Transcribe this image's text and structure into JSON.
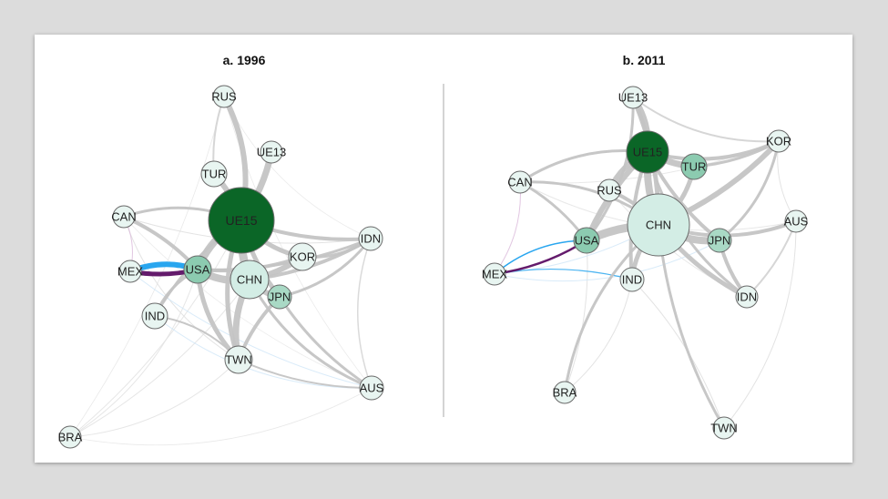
{
  "panels": [
    {
      "title": "a. 1996",
      "nodes": [
        {
          "id": "RUS",
          "label": "RUS",
          "fill": "#e8f5f1"
        },
        {
          "id": "UE13",
          "label": "UE13",
          "fill": "#e8f5f1"
        },
        {
          "id": "TUR",
          "label": "TUR",
          "fill": "#e8f5f1"
        },
        {
          "id": "UE15",
          "label": "UE15",
          "fill": "#0b6627"
        },
        {
          "id": "CAN",
          "label": "CAN",
          "fill": "#e8f5f1"
        },
        {
          "id": "IDN",
          "label": "IDN",
          "fill": "#e8f5f1"
        },
        {
          "id": "KOR",
          "label": "KOR",
          "fill": "#e8f5f1"
        },
        {
          "id": "MEX",
          "label": "MEX",
          "fill": "#e8f5f1"
        },
        {
          "id": "USA",
          "label": "USA",
          "fill": "#8ccbb0"
        },
        {
          "id": "CHN",
          "label": "CHN",
          "fill": "#d3ede5"
        },
        {
          "id": "JPN",
          "label": "JPN",
          "fill": "#a9d9c5"
        },
        {
          "id": "IND",
          "label": "IND",
          "fill": "#e8f5f1"
        },
        {
          "id": "TWN",
          "label": "TWN",
          "fill": "#e8f5f1"
        },
        {
          "id": "AUS",
          "label": "AUS",
          "fill": "#e8f5f1"
        },
        {
          "id": "BRA",
          "label": "BRA",
          "fill": "#e8f5f1"
        }
      ],
      "edges": [
        {
          "from": "UE15",
          "to": "CHN",
          "color": "#c4c4c4",
          "weight": 9
        },
        {
          "from": "UE15",
          "to": "USA",
          "color": "#c4c4c4",
          "weight": 8
        },
        {
          "from": "UE15",
          "to": "TUR",
          "color": "#c4c4c4",
          "weight": 6
        },
        {
          "from": "UE15",
          "to": "RUS",
          "color": "#c4c4c4",
          "weight": 6
        },
        {
          "from": "UE15",
          "to": "UE13",
          "color": "#c4c4c4",
          "weight": 7
        },
        {
          "from": "UE15",
          "to": "KOR",
          "color": "#c4c4c4",
          "weight": 5
        },
        {
          "from": "UE15",
          "to": "IDN",
          "color": "#c4c4c4",
          "weight": 4
        },
        {
          "from": "UE15",
          "to": "TWN",
          "color": "#c4c4c4",
          "weight": 5
        },
        {
          "from": "UE15",
          "to": "JPN",
          "color": "#c4c4c4",
          "weight": 5
        },
        {
          "from": "UE15",
          "to": "CAN",
          "color": "#c4c4c4",
          "weight": 3
        },
        {
          "from": "UE15",
          "to": "IND",
          "color": "#c4c4c4",
          "weight": 3
        },
        {
          "from": "USA",
          "to": "CHN",
          "color": "#c4c4c4",
          "weight": 8
        },
        {
          "from": "USA",
          "to": "CAN",
          "color": "#c4c4c4",
          "weight": 4
        },
        {
          "from": "USA",
          "to": "TWN",
          "color": "#c4c4c4",
          "weight": 5
        },
        {
          "from": "USA",
          "to": "KOR",
          "color": "#c4c4c4",
          "weight": 4
        },
        {
          "from": "USA",
          "to": "IND",
          "color": "#c4c4c4",
          "weight": 3
        },
        {
          "from": "USA",
          "to": "IDN",
          "color": "#c4c4c4",
          "weight": 3
        },
        {
          "from": "CHN",
          "to": "TWN",
          "color": "#c4c4c4",
          "weight": 7
        },
        {
          "from": "CHN",
          "to": "KOR",
          "color": "#c4c4c4",
          "weight": 6
        },
        {
          "from": "CHN",
          "to": "JPN",
          "color": "#c4c4c4",
          "weight": 6
        },
        {
          "from": "CHN",
          "to": "IDN",
          "color": "#c4c4c4",
          "weight": 4
        },
        {
          "from": "CHN",
          "to": "AUS",
          "color": "#c4c4c4",
          "weight": 3
        },
        {
          "from": "JPN",
          "to": "TWN",
          "color": "#c4c4c4",
          "weight": 4
        },
        {
          "from": "JPN",
          "to": "IDN",
          "color": "#c4c4c4",
          "weight": 3
        },
        {
          "from": "JPN",
          "to": "AUS",
          "color": "#c4c4c4",
          "weight": 3
        },
        {
          "from": "KOR",
          "to": "IDN",
          "color": "#c4c4c4",
          "weight": 3
        },
        {
          "from": "TWN",
          "to": "AUS",
          "color": "#c4c4c4",
          "weight": 2
        },
        {
          "from": "TWN",
          "to": "IND",
          "color": "#c4c4c4",
          "weight": 2
        },
        {
          "from": "RUS",
          "to": "TUR",
          "color": "#d4d4d4",
          "weight": 2
        },
        {
          "from": "IDN",
          "to": "AUS",
          "color": "#d8d8d8",
          "weight": 1.5
        },
        {
          "from": "CAN",
          "to": "IDN",
          "color": "#dcdcdc",
          "weight": 1
        },
        {
          "from": "CAN",
          "to": "TWN",
          "color": "#dcdcdc",
          "weight": 1
        },
        {
          "from": "BRA",
          "to": "UE15",
          "color": "#e0e0e0",
          "weight": 1
        },
        {
          "from": "BRA",
          "to": "USA",
          "color": "#e0e0e0",
          "weight": 1
        },
        {
          "from": "BRA",
          "to": "CHN",
          "color": "#e0e0e0",
          "weight": 1
        },
        {
          "from": "BRA",
          "to": "TWN",
          "color": "#e0e0e0",
          "weight": 1
        },
        {
          "from": "BRA",
          "to": "RUS",
          "color": "#e4e4e4",
          "weight": 0.8
        },
        {
          "from": "BRA",
          "to": "AUS",
          "color": "#e4e4e4",
          "weight": 0.8
        },
        {
          "from": "RUS",
          "to": "AUS",
          "color": "#e6e6e6",
          "weight": 0.8
        },
        {
          "from": "RUS",
          "to": "IDN",
          "color": "#e6e6e6",
          "weight": 0.8
        },
        {
          "from": "CAN",
          "to": "AUS",
          "color": "#e6e6e6",
          "weight": 0.8
        },
        {
          "from": "IND",
          "to": "AUS",
          "color": "#cfe6f7",
          "weight": 1
        },
        {
          "from": "MEX",
          "to": "AUS",
          "color": "#cfe6f7",
          "weight": 1
        },
        {
          "from": "MEX",
          "to": "CAN",
          "color": "#d9b8d9",
          "weight": 1
        },
        {
          "from": "MEX",
          "to": "USA",
          "color": "#5c0f64",
          "weight": 5
        },
        {
          "from": "USA",
          "to": "MEX",
          "color": "#1ea1ee",
          "weight": 6
        }
      ]
    },
    {
      "title": "b. 2011",
      "nodes": [
        {
          "id": "UE13",
          "label": "UE13",
          "fill": "#e8f5f1"
        },
        {
          "id": "UE15",
          "label": "UE15",
          "fill": "#0b6627"
        },
        {
          "id": "KOR",
          "label": "KOR",
          "fill": "#e8f5f1"
        },
        {
          "id": "CAN",
          "label": "CAN",
          "fill": "#e8f5f1"
        },
        {
          "id": "TUR",
          "label": "TUR",
          "fill": "#8ccbb0"
        },
        {
          "id": "RUS",
          "label": "RUS",
          "fill": "#e8f5f1"
        },
        {
          "id": "CHN",
          "label": "CHN",
          "fill": "#d3ede5"
        },
        {
          "id": "AUS",
          "label": "AUS",
          "fill": "#e8f5f1"
        },
        {
          "id": "USA",
          "label": "USA",
          "fill": "#8ccbb0"
        },
        {
          "id": "JPN",
          "label": "JPN",
          "fill": "#a9d9c5"
        },
        {
          "id": "MEX",
          "label": "MEX",
          "fill": "#e8f5f1"
        },
        {
          "id": "IND",
          "label": "IND",
          "fill": "#e8f5f1"
        },
        {
          "id": "IDN",
          "label": "IDN",
          "fill": "#e8f5f1"
        },
        {
          "id": "BRA",
          "label": "BRA",
          "fill": "#e8f5f1"
        },
        {
          "id": "TWN",
          "label": "TWN",
          "fill": "#e8f5f1"
        }
      ],
      "edges": [
        {
          "from": "UE15",
          "to": "CHN",
          "color": "#c4c4c4",
          "weight": 8
        },
        {
          "from": "UE15",
          "to": "UE13",
          "color": "#c4c4c4",
          "weight": 7
        },
        {
          "from": "UE15",
          "to": "TUR",
          "color": "#c4c4c4",
          "weight": 7
        },
        {
          "from": "UE15",
          "to": "RUS",
          "color": "#c4c4c4",
          "weight": 6
        },
        {
          "from": "UE15",
          "to": "USA",
          "color": "#c4c4c4",
          "weight": 6
        },
        {
          "from": "UE15",
          "to": "KOR",
          "color": "#c4c4c4",
          "weight": 4
        },
        {
          "from": "UE15",
          "to": "JPN",
          "color": "#c4c4c4",
          "weight": 4
        },
        {
          "from": "UE15",
          "to": "CAN",
          "color": "#c4c4c4",
          "weight": 3
        },
        {
          "from": "UE15",
          "to": "IND",
          "color": "#c4c4c4",
          "weight": 4
        },
        {
          "from": "UE15",
          "to": "IDN",
          "color": "#c4c4c4",
          "weight": 3
        },
        {
          "from": "CHN",
          "to": "USA",
          "color": "#c4c4c4",
          "weight": 9
        },
        {
          "from": "CHN",
          "to": "JPN",
          "color": "#c4c4c4",
          "weight": 8
        },
        {
          "from": "CHN",
          "to": "KOR",
          "color": "#c4c4c4",
          "weight": 6
        },
        {
          "from": "CHN",
          "to": "TUR",
          "color": "#c4c4c4",
          "weight": 5
        },
        {
          "from": "CHN",
          "to": "UE13",
          "color": "#c4c4c4",
          "weight": 5
        },
        {
          "from": "CHN",
          "to": "IND",
          "color": "#c4c4c4",
          "weight": 5
        },
        {
          "from": "CHN",
          "to": "IDN",
          "color": "#c4c4c4",
          "weight": 5
        },
        {
          "from": "CHN",
          "to": "AUS",
          "color": "#c4c4c4",
          "weight": 4
        },
        {
          "from": "CHN",
          "to": "RUS",
          "color": "#c4c4c4",
          "weight": 4
        },
        {
          "from": "CHN",
          "to": "CAN",
          "color": "#c4c4c4",
          "weight": 3
        },
        {
          "from": "CHN",
          "to": "TWN",
          "color": "#c4c4c4",
          "weight": 3
        },
        {
          "from": "CHN",
          "to": "BRA",
          "color": "#c4c4c4",
          "weight": 3
        },
        {
          "from": "USA",
          "to": "CAN",
          "color": "#c4c4c4",
          "weight": 3
        },
        {
          "from": "USA",
          "to": "UE13",
          "color": "#c4c4c4",
          "weight": 3
        },
        {
          "from": "JPN",
          "to": "IDN",
          "color": "#c4c4c4",
          "weight": 4
        },
        {
          "from": "JPN",
          "to": "KOR",
          "color": "#c4c4c4",
          "weight": 3
        },
        {
          "from": "TUR",
          "to": "KOR",
          "color": "#c4c4c4",
          "weight": 3
        },
        {
          "from": "UE13",
          "to": "KOR",
          "color": "#d4d4d4",
          "weight": 2
        },
        {
          "from": "IDN",
          "to": "AUS",
          "color": "#d4d4d4",
          "weight": 2
        },
        {
          "from": "TWN",
          "to": "AUS",
          "color": "#dcdcdc",
          "weight": 1
        },
        {
          "from": "TWN",
          "to": "IND",
          "color": "#dcdcdc",
          "weight": 1
        },
        {
          "from": "BRA",
          "to": "IND",
          "color": "#dcdcdc",
          "weight": 1
        },
        {
          "from": "BRA",
          "to": "USA",
          "color": "#dcdcdc",
          "weight": 1
        },
        {
          "from": "KOR",
          "to": "AUS",
          "color": "#dcdcdc",
          "weight": 1
        },
        {
          "from": "CAN",
          "to": "KOR",
          "color": "#e2e2e2",
          "weight": 1
        },
        {
          "from": "CAN",
          "to": "AUS",
          "color": "#e2e2e2",
          "weight": 1
        },
        {
          "from": "RUS",
          "to": "IDN",
          "color": "#e2e2e2",
          "weight": 1
        },
        {
          "from": "MEX",
          "to": "CAN",
          "color": "#d9b8d9",
          "weight": 1
        },
        {
          "from": "MEX",
          "to": "CHN",
          "color": "#cfe6f7",
          "weight": 1
        },
        {
          "from": "MEX",
          "to": "JPN",
          "color": "#cfe6f7",
          "weight": 1
        },
        {
          "from": "MEX",
          "to": "USA",
          "color": "#5c0f64",
          "weight": 2.5
        },
        {
          "from": "USA",
          "to": "MEX",
          "color": "#1ea1ee",
          "weight": 1.5
        },
        {
          "from": "IND",
          "to": "MEX",
          "color": "#1ea1ee",
          "weight": 1.2
        }
      ]
    }
  ]
}
